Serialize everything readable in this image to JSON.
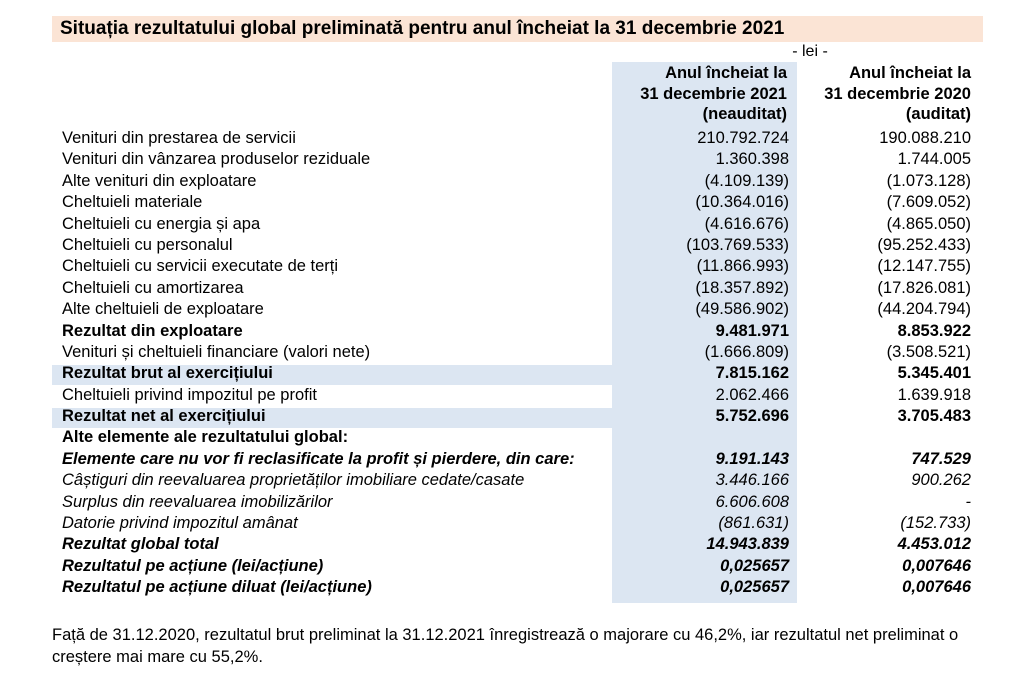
{
  "title": "Situația rezultatului global preliminată pentru anul încheiat la 31 decembrie 2021",
  "currency": "- lei -",
  "columns": [
    {
      "line1": "Anul încheiat la",
      "line2": "31 decembrie 2021",
      "line3": "(neauditat)"
    },
    {
      "line1": "Anul încheiat la",
      "line2": "31 decembrie 2020",
      "line3": "(auditat)"
    }
  ],
  "rows": [
    {
      "label": "Venituri din prestarea de servicii",
      "v2021": "210.792.724",
      "v2020": "190.088.210"
    },
    {
      "label": "Venituri din vânzarea produselor reziduale",
      "v2021": "1.360.398",
      "v2020": "1.744.005"
    },
    {
      "label": "Alte venituri din exploatare",
      "v2021": "(4.109.139)",
      "v2020": "(1.073.128)"
    },
    {
      "label": "Cheltuieli materiale",
      "v2021": "(10.364.016)",
      "v2020": "(7.609.052)"
    },
    {
      "label": "Cheltuieli cu energia și apa",
      "v2021": "(4.616.676)",
      "v2020": "(4.865.050)"
    },
    {
      "label": "Cheltuieli cu personalul",
      "v2021": "(103.769.533)",
      "v2020": "(95.252.433)"
    },
    {
      "label": "Cheltuieli cu servicii executate de terți",
      "v2021": "(11.866.993)",
      "v2020": "(12.147.755)"
    },
    {
      "label": "Cheltuieli cu amortizarea",
      "v2021": "(18.357.892)",
      "v2020": "(17.826.081)"
    },
    {
      "label": "Alte cheltuieli de exploatare",
      "v2021": "(49.586.902)",
      "v2020": "(44.204.794)"
    },
    {
      "label": "Rezultat din exploatare",
      "v2021": "9.481.971",
      "v2020": "8.853.922"
    },
    {
      "label": "Venituri și cheltuieli financiare (valori nete)",
      "v2021": "(1.666.809)",
      "v2020": "(3.508.521)"
    },
    {
      "label": "Rezultat brut al exercițiului",
      "v2021": "7.815.162",
      "v2020": "5.345.401"
    },
    {
      "label": "Cheltuieli privind impozitul pe profit",
      "v2021": "2.062.466",
      "v2020": "1.639.918"
    },
    {
      "label": "Rezultat net al exercițiului",
      "v2021": "5.752.696",
      "v2020": "3.705.483"
    },
    {
      "label": "Alte elemente ale rezultatului global:",
      "v2021": "",
      "v2020": ""
    },
    {
      "label": "Elemente care nu vor fi reclasificate la profit și pierdere, din care:",
      "v2021": "9.191.143",
      "v2020": "747.529"
    },
    {
      "label": "Câștiguri din reevaluarea proprietăților imobiliare cedate/casate",
      "v2021": "3.446.166",
      "v2020": "900.262"
    },
    {
      "label": "Surplus din reevaluarea imobilizărilor",
      "v2021": "6.606.608",
      "v2020": "-"
    },
    {
      "label": "Datorie privind impozitul amânat",
      "v2021": "(861.631)",
      "v2020": "(152.733)"
    },
    {
      "label": "Rezultat global total",
      "v2021": "14.943.839",
      "v2020": "4.453.012"
    },
    {
      "label": "Rezultatul pe acțiune (lei/acțiune)",
      "v2021": "0,025657",
      "v2020": "0,007646"
    },
    {
      "label": "Rezultatul pe acțiune diluat (lei/acțiune)",
      "v2021": "0,025657",
      "v2020": "0,007646"
    }
  ],
  "note": "Față de 31.12.2020, rezultatul brut preliminat la 31.12.2021 înregistrează o majorare cu 46,2%, iar rezultatul net preliminat o creștere mai mare cu 55,2%."
}
